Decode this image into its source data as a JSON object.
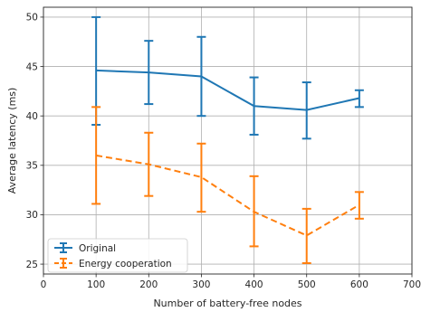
{
  "chart_data": {
    "type": "line",
    "title": "",
    "xlabel": "Number of battery-free nodes",
    "ylabel": "Average latency (ms)",
    "xlim": [
      0,
      700
    ],
    "ylim": [
      24,
      51
    ],
    "xticks": [
      0,
      100,
      200,
      300,
      400,
      500,
      600,
      700
    ],
    "yticks": [
      25,
      30,
      35,
      40,
      45,
      50
    ],
    "grid": true,
    "legend_position": "lower-left",
    "x": [
      100,
      200,
      300,
      400,
      500,
      600
    ],
    "series": [
      {
        "name": "Original",
        "color": "#1f77b4",
        "line_style": "solid",
        "values": [
          44.6,
          44.4,
          44.0,
          41.0,
          40.6,
          41.8
        ],
        "error_low": [
          39.1,
          41.2,
          40.0,
          38.1,
          37.7,
          40.9
        ],
        "error_high": [
          50.0,
          47.6,
          48.0,
          43.9,
          43.4,
          42.6
        ]
      },
      {
        "name": "Energy cooperation",
        "color": "#ff7f0e",
        "line_style": "dashed",
        "values": [
          36.0,
          35.1,
          33.8,
          30.3,
          27.9,
          31.0
        ],
        "error_low": [
          31.1,
          31.9,
          30.3,
          26.8,
          25.1,
          29.6
        ],
        "error_high": [
          40.9,
          38.3,
          37.2,
          33.9,
          30.6,
          32.3
        ]
      }
    ]
  }
}
